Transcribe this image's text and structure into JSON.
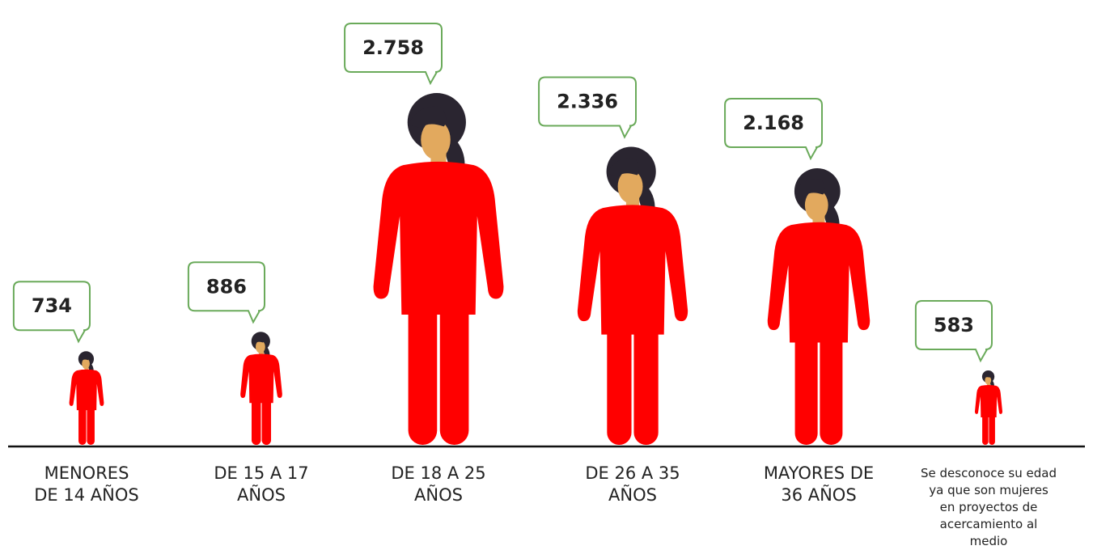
{
  "chart_data": {
    "type": "pictograph",
    "categories": [
      "MENORES DE 14 AÑOS",
      "DE 15 A 17 AÑOS",
      "DE 18 A 25 AÑOS",
      "DE 26 A 35 AÑOS",
      "MAYORES DE 36 AÑOS",
      "Se desconoce su edad ya que son mujeres en proyectos de acercamiento al medio"
    ],
    "values": [
      734,
      886,
      2758,
      2336,
      2168,
      583
    ],
    "value_labels": [
      "734",
      "886",
      "2.758",
      "2.336",
      "2.168",
      "583"
    ],
    "color": "#ff0000"
  }
}
